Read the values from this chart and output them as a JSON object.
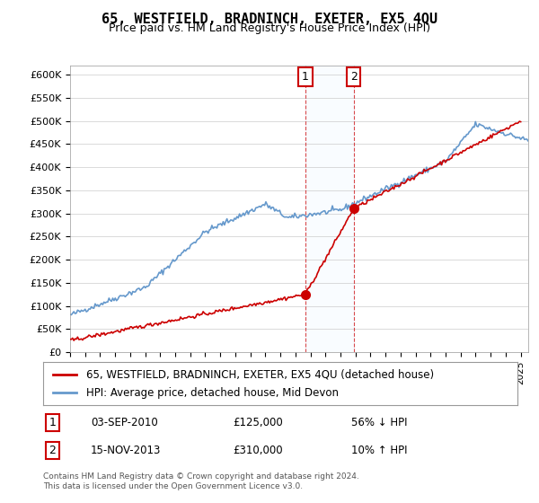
{
  "title": "65, WESTFIELD, BRADNINCH, EXETER, EX5 4QU",
  "subtitle": "Price paid vs. HM Land Registry's House Price Index (HPI)",
  "ylabel": "",
  "ylim": [
    0,
    620000
  ],
  "yticks": [
    0,
    50000,
    100000,
    150000,
    200000,
    250000,
    300000,
    350000,
    400000,
    450000,
    500000,
    550000,
    600000
  ],
  "ytick_labels": [
    "£0",
    "£50K",
    "£100K",
    "£150K",
    "£200K",
    "£250K",
    "£300K",
    "£350K",
    "£400K",
    "£450K",
    "£500K",
    "£550K",
    "£600K"
  ],
  "xlim_start": 1995.0,
  "xlim_end": 2025.5,
  "sale1_x": 2010.67,
  "sale1_y": 125000,
  "sale1_label": "1",
  "sale1_date": "03-SEP-2010",
  "sale1_price": "£125,000",
  "sale1_hpi": "56% ↓ HPI",
  "sale2_x": 2013.88,
  "sale2_y": 310000,
  "sale2_label": "2",
  "sale2_date": "15-NOV-2013",
  "sale2_price": "£310,000",
  "sale2_hpi": "10% ↑ HPI",
  "property_color": "#cc0000",
  "hpi_color": "#6699cc",
  "property_label": "65, WESTFIELD, BRADNINCH, EXETER, EX5 4QU (detached house)",
  "hpi_label": "HPI: Average price, detached house, Mid Devon",
  "footnote": "Contains HM Land Registry data © Crown copyright and database right 2024.\nThis data is licensed under the Open Government Licence v3.0.",
  "background_color": "#ffffff",
  "highlight_color": "#ddeeff"
}
